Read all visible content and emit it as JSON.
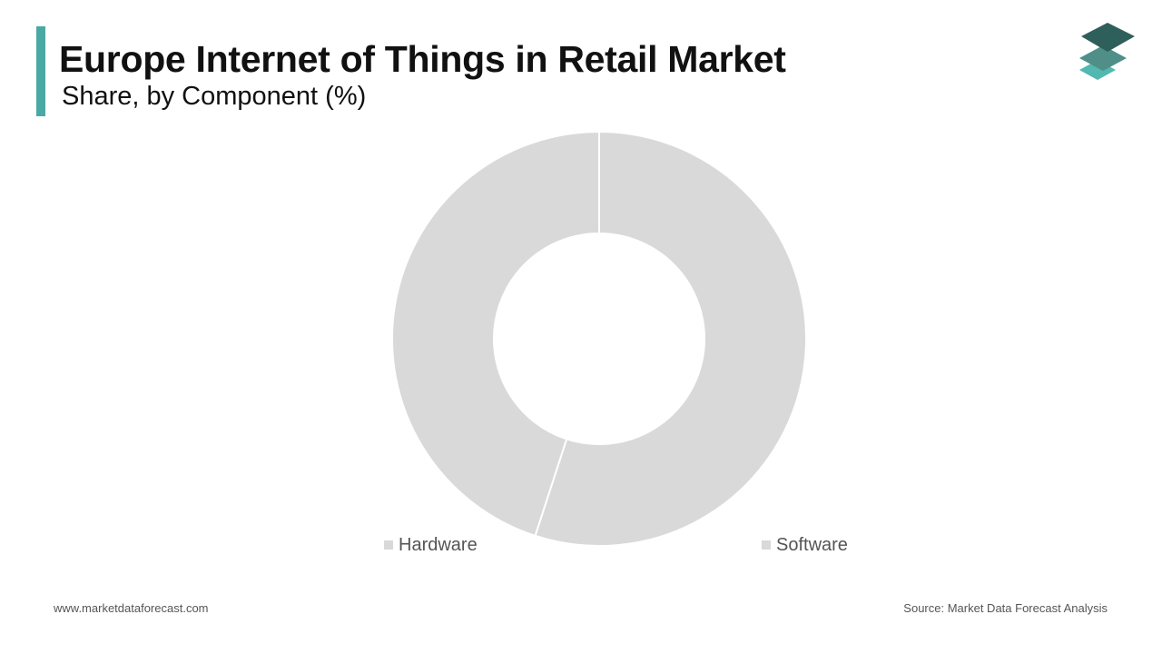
{
  "header": {
    "title": "Europe Internet of Things in Retail Market",
    "subtitle": "Share, by Component (%)",
    "accent_color": "#4aa9a4"
  },
  "logo": {
    "icon": "stacked-layers-logo-icon",
    "colors": [
      "#2f5f5a",
      "#4f8f88",
      "#52b8b0"
    ]
  },
  "chart_data": {
    "type": "pie",
    "variant": "donut",
    "title": "Europe Internet of Things in Retail Market",
    "subtitle": "Share, by Component (%)",
    "categories": [
      "Hardware",
      "Software"
    ],
    "values": [
      45,
      55
    ],
    "colors": [
      "#d9d9d9",
      "#d9d9d9"
    ],
    "legend": "bottom",
    "data_labels": false
  },
  "legend": {
    "items": [
      {
        "label": "Hardware",
        "color": "#d9d9d9"
      },
      {
        "label": "Software",
        "color": "#d9d9d9"
      }
    ]
  },
  "footer": {
    "website": "www.marketdataforecast.com",
    "source": "Source: Market Data Forecast Analysis"
  }
}
